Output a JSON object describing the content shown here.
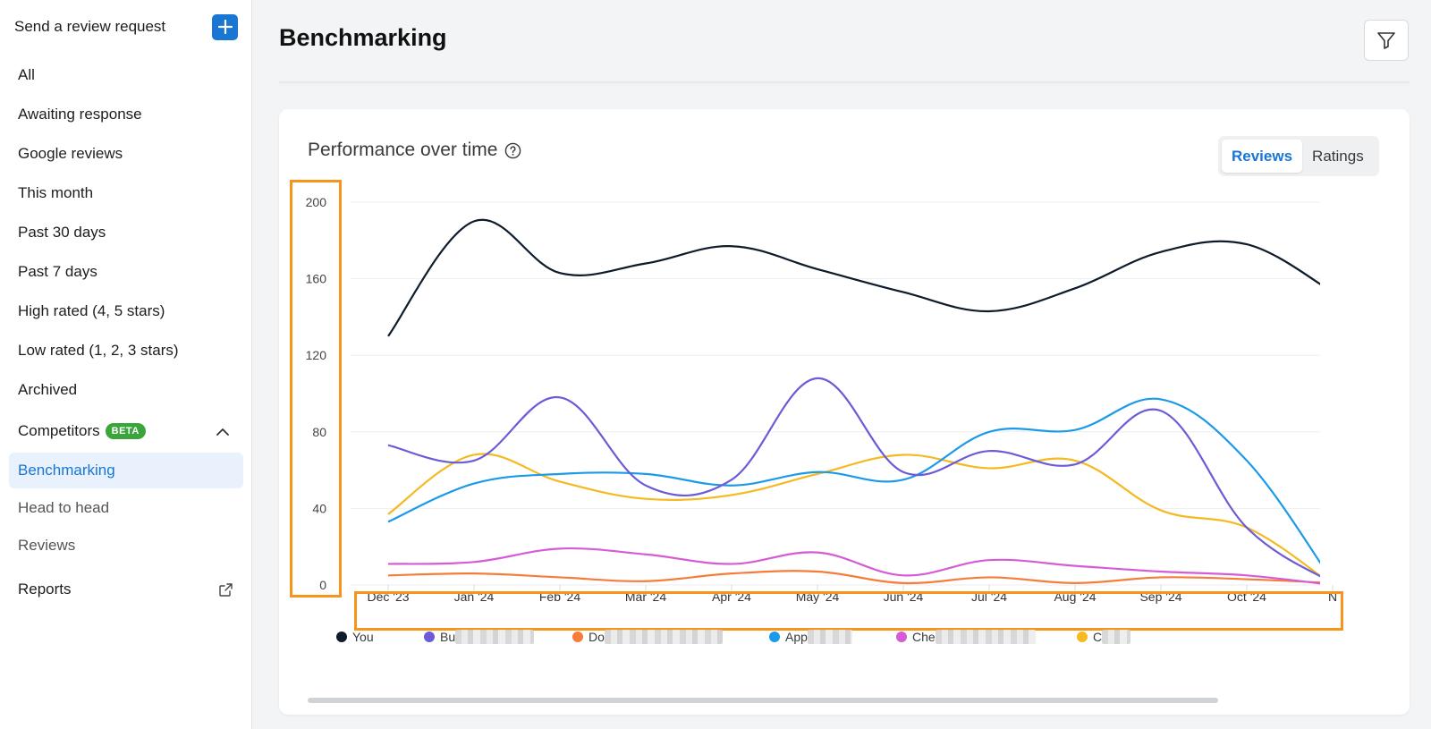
{
  "sidebar": {
    "send_request_label": "Send a review request",
    "nav": [
      "All",
      "Awaiting response",
      "Google reviews",
      "This month",
      "Past 30 days",
      "Past 7 days",
      "High rated (4, 5 stars)",
      "Low rated (1, 2, 3 stars)",
      "Archived"
    ],
    "competitors_label": "Competitors",
    "beta_badge": "BETA",
    "competitor_items": [
      "Benchmarking",
      "Head to head",
      "Reviews"
    ],
    "reports_label": "Reports"
  },
  "header": {
    "title": "Benchmarking"
  },
  "card": {
    "title": "Performance over time",
    "toggle": {
      "reviews": "Reviews",
      "ratings": "Ratings",
      "selected": "Reviews"
    }
  },
  "colors": {
    "accent": "#1976d2",
    "highlight": "#f7941d",
    "beta": "#3aa53a"
  },
  "chart_data": {
    "type": "line",
    "categories": [
      "Dec '23",
      "Jan '24",
      "Feb '24",
      "Mar '24",
      "Apr '24",
      "May '24",
      "Jun '24",
      "Jul '24",
      "Aug '24",
      "Sep '24",
      "Oct '24",
      "N"
    ],
    "y_ticks": [
      "0",
      "40",
      "80",
      "120",
      "160",
      "200"
    ],
    "ylim": [
      0,
      200
    ],
    "grid": true,
    "legend_position": "bottom",
    "series": [
      {
        "name": "You",
        "color": "#0d1b2a",
        "values": [
          130,
          190,
          163,
          168,
          177,
          165,
          153,
          143,
          155,
          174,
          178,
          153
        ]
      },
      {
        "name": "Bu",
        "color": "#6b5bd6",
        "values": [
          73,
          65,
          98,
          52,
          55,
          108,
          59,
          70,
          63,
          91,
          30,
          1
        ]
      },
      {
        "name": "Do",
        "color": "#f57c3a",
        "values": [
          5,
          6,
          4,
          2,
          6,
          7,
          1,
          4,
          1,
          4,
          3,
          1
        ]
      },
      {
        "name": "App",
        "color": "#1a9ae8",
        "values": [
          33,
          53,
          58,
          58,
          52,
          59,
          55,
          80,
          81,
          97,
          65,
          2
        ]
      },
      {
        "name": "Che",
        "color": "#d65bd6",
        "values": [
          11,
          12,
          19,
          16,
          11,
          17,
          5,
          13,
          10,
          7,
          5,
          0
        ]
      },
      {
        "name": "C",
        "color": "#f5b921",
        "values": [
          37,
          68,
          54,
          45,
          47,
          58,
          68,
          61,
          65,
          39,
          30,
          0
        ]
      }
    ]
  }
}
